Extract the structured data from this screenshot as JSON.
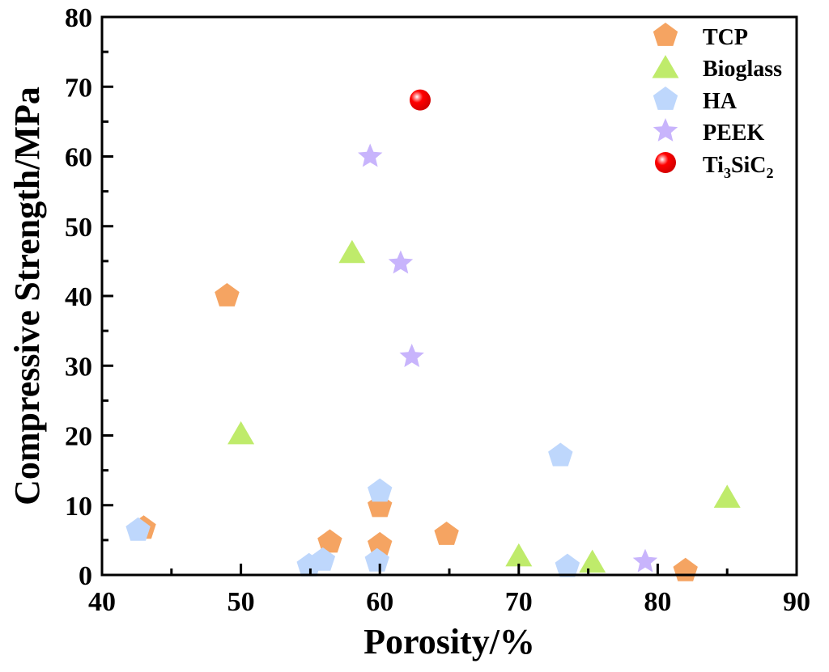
{
  "chart_data": {
    "type": "scatter",
    "title": "",
    "xlabel": "Porosity/%",
    "ylabel": "Compressive Strength/MPa",
    "xlim": [
      40,
      90
    ],
    "ylim": [
      0,
      80
    ],
    "xticks": [
      40,
      50,
      60,
      70,
      80,
      90
    ],
    "yticks": [
      0,
      10,
      20,
      30,
      40,
      50,
      60,
      70,
      80
    ],
    "grid": false,
    "legend_position": "top-right",
    "series": [
      {
        "name": "TCP",
        "marker": "pentagon",
        "color": "#F5A462",
        "points": [
          [
            43.0,
            6.7
          ],
          [
            49.0,
            40.0
          ],
          [
            56.4,
            4.7
          ],
          [
            60.0,
            9.8
          ],
          [
            60.0,
            4.3
          ],
          [
            64.8,
            5.8
          ],
          [
            82.0,
            0.6
          ]
        ]
      },
      {
        "name": "Bioglass",
        "marker": "triangle",
        "color": "#BFEB6B",
        "points": [
          [
            50.0,
            20.3
          ],
          [
            58.0,
            46.3
          ],
          [
            70.0,
            2.8
          ],
          [
            75.3,
            1.9
          ],
          [
            85.0,
            11.2
          ]
        ]
      },
      {
        "name": "HA",
        "marker": "pentagon",
        "color": "#BED7FC",
        "points": [
          [
            42.6,
            6.4
          ],
          [
            54.9,
            1.3
          ],
          [
            55.9,
            2.1
          ],
          [
            59.8,
            2.0
          ],
          [
            60.0,
            12.0
          ],
          [
            73.0,
            17.1
          ],
          [
            73.5,
            1.2
          ]
        ]
      },
      {
        "name": "PEEK",
        "marker": "star",
        "color": "#C8B4FC",
        "points": [
          [
            59.3,
            60.0
          ],
          [
            61.5,
            44.7
          ],
          [
            62.3,
            31.3
          ],
          [
            79.1,
            1.9
          ]
        ]
      },
      {
        "name": "Ti3SiC2",
        "marker": "sphere",
        "color": "#FF0000",
        "points": [
          [
            62.9,
            68.1
          ]
        ]
      }
    ]
  },
  "legend": {
    "items": [
      {
        "label": "TCP"
      },
      {
        "label": "Bioglass"
      },
      {
        "label": "HA"
      },
      {
        "label": "PEEK"
      },
      {
        "label_main": "Ti",
        "sub1": "3",
        "mid": "SiC",
        "sub2": "2"
      }
    ]
  }
}
